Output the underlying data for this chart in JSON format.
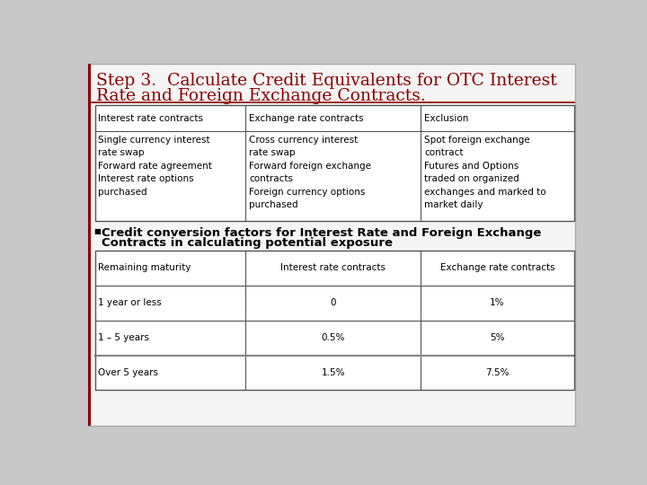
{
  "title_line1": "Step 3.  Calculate Credit Equivalents for OTC Interest",
  "title_line2": "Rate and Foreign Exchange Contracts.",
  "title_color": "#8B0000",
  "table1_headers": [
    "Interest rate contracts",
    "Exchange rate contracts",
    "Exclusion"
  ],
  "table1_col1": "Single currency interest\nrate swap\nForward rate agreement\nInterest rate options\npurchased",
  "table1_col2": "Cross currency interest\nrate swap\nForward foreign exchange\ncontracts\nForeign currency options\npurchased",
  "table1_col3": "Spot foreign exchange\ncontract\nFutures and Options\ntraded on organized\nexchanges and marked to\nmarket daily",
  "bullet_text_line1": "Credit conversion factors for Interest Rate and Foreign Exchange",
  "bullet_text_line2": "Contracts in calculating potential exposure",
  "table2_headers": [
    "Remaining maturity",
    "Interest rate contracts",
    "Exchange rate contracts"
  ],
  "table2_data": [
    [
      "1 year or less",
      "0",
      "1%"
    ],
    [
      "1 – 5 years",
      "0.5%",
      "5%"
    ],
    [
      "Over 5 years",
      "1.5%",
      "7.5%"
    ]
  ],
  "table_border_color": "#555555",
  "text_color": "#000000",
  "font_size_title": 13.5,
  "font_size_table": 7.5,
  "font_size_bullet": 9.5,
  "slide_bg": "#f5f5f5",
  "slide_border": "#aaaaaa",
  "left_bar_color": "#8B0000",
  "strike_color": "#888888"
}
